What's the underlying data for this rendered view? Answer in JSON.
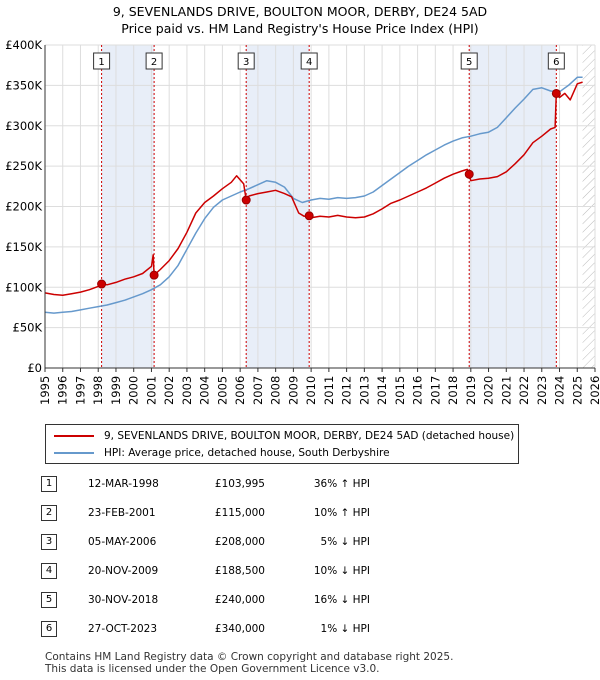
{
  "title_line1": "9, SEVENLANDS DRIVE, BOULTON MOOR, DERBY, DE24 5AD",
  "title_line2": "Price paid vs. HM Land Registry's House Price Index (HPI)",
  "legend": {
    "property_label": "9, SEVENLANDS DRIVE, BOULTON MOOR, DERBY, DE24 5AD (detached house)",
    "hpi_label": "HPI: Average price, detached house, South Derbyshire"
  },
  "colors": {
    "property": "#cc0000",
    "hpi": "#6699cc",
    "shade": "#e8eef8",
    "marker_line": "#cc0000"
  },
  "sales": [
    {
      "n": "1",
      "date": "12-MAR-1998",
      "price": "£103,995",
      "hpi": "36% ↑ HPI"
    },
    {
      "n": "2",
      "date": "23-FEB-2001",
      "price": "£115,000",
      "hpi": "10% ↑ HPI"
    },
    {
      "n": "3",
      "date": "05-MAY-2006",
      "price": "£208,000",
      "hpi": "5% ↓ HPI"
    },
    {
      "n": "4",
      "date": "20-NOV-2009",
      "price": "£188,500",
      "hpi": "10% ↓ HPI"
    },
    {
      "n": "5",
      "date": "30-NOV-2018",
      "price": "£240,000",
      "hpi": "16% ↓ HPI"
    },
    {
      "n": "6",
      "date": "27-OCT-2023",
      "price": "£340,000",
      "hpi": "1% ↓ HPI"
    }
  ],
  "footer_line1": "Contains HM Land Registry data © Crown copyright and database right 2025.",
  "footer_line2": "This data is licensed under the Open Government Licence v3.0.",
  "chart_data": {
    "type": "line",
    "title": "9, SEVENLANDS DRIVE, BOULTON MOOR, DERBY, DE24 5AD — Price paid vs. HM Land Registry's House Price Index (HPI)",
    "xlim": [
      1995,
      2026
    ],
    "ylim": [
      0,
      400000
    ],
    "x_ticks": [
      1995,
      1996,
      1997,
      1998,
      1999,
      2000,
      2001,
      2002,
      2003,
      2004,
      2005,
      2006,
      2007,
      2008,
      2009,
      2010,
      2011,
      2012,
      2013,
      2014,
      2015,
      2016,
      2017,
      2018,
      2019,
      2020,
      2021,
      2022,
      2023,
      2024,
      2025,
      2026
    ],
    "y_ticks": [
      0,
      50000,
      100000,
      150000,
      200000,
      250000,
      300000,
      350000,
      400000
    ],
    "y_tick_labels": [
      "£0",
      "£50K",
      "£100K",
      "£150K",
      "£200K",
      "£250K",
      "£300K",
      "£350K",
      "£400K"
    ],
    "grid": true,
    "shaded_periods": [
      [
        1998.19,
        2001.15
      ],
      [
        2006.34,
        2009.89
      ],
      [
        2018.91,
        2023.82
      ]
    ],
    "future_hatch_from": 2025.3,
    "sale_markers": [
      {
        "label": "1",
        "x": 1998.19,
        "y": 103995
      },
      {
        "label": "2",
        "x": 2001.15,
        "y": 115000
      },
      {
        "label": "3",
        "x": 2006.34,
        "y": 208000
      },
      {
        "label": "4",
        "x": 2009.89,
        "y": 188500
      },
      {
        "label": "5",
        "x": 2018.91,
        "y": 240000
      },
      {
        "label": "6",
        "x": 2023.82,
        "y": 340000
      }
    ],
    "series": [
      {
        "name": "9, SEVENLANDS DRIVE, BOULTON MOOR, DERBY, DE24 5AD (detached house)",
        "color": "#cc0000",
        "points": [
          [
            1995.0,
            93000
          ],
          [
            1995.5,
            91000
          ],
          [
            1996.0,
            90000
          ],
          [
            1996.5,
            92000
          ],
          [
            1997.0,
            94000
          ],
          [
            1997.5,
            97000
          ],
          [
            1998.0,
            101000
          ],
          [
            1998.19,
            103995
          ],
          [
            1998.5,
            103000
          ],
          [
            1999.0,
            106000
          ],
          [
            1999.5,
            110000
          ],
          [
            2000.0,
            113000
          ],
          [
            2000.5,
            117000
          ],
          [
            2001.0,
            126000
          ],
          [
            2001.1,
            140000
          ],
          [
            2001.15,
            115000
          ],
          [
            2001.5,
            122000
          ],
          [
            2002.0,
            133000
          ],
          [
            2002.5,
            148000
          ],
          [
            2003.0,
            168000
          ],
          [
            2003.5,
            192000
          ],
          [
            2004.0,
            205000
          ],
          [
            2004.5,
            213000
          ],
          [
            2005.0,
            222000
          ],
          [
            2005.5,
            230000
          ],
          [
            2005.8,
            238000
          ],
          [
            2006.2,
            228000
          ],
          [
            2006.34,
            208000
          ],
          [
            2006.5,
            213000
          ],
          [
            2007.0,
            216000
          ],
          [
            2007.5,
            218000
          ],
          [
            2008.0,
            220000
          ],
          [
            2008.5,
            216000
          ],
          [
            2008.9,
            212000
          ],
          [
            2009.3,
            192000
          ],
          [
            2009.6,
            188000
          ],
          [
            2009.89,
            188500
          ],
          [
            2010.0,
            186000
          ],
          [
            2010.5,
            188000
          ],
          [
            2011.0,
            187000
          ],
          [
            2011.5,
            189000
          ],
          [
            2012.0,
            187000
          ],
          [
            2012.5,
            186000
          ],
          [
            2013.0,
            187000
          ],
          [
            2013.5,
            191000
          ],
          [
            2014.0,
            197000
          ],
          [
            2014.5,
            204000
          ],
          [
            2015.0,
            208000
          ],
          [
            2015.5,
            213000
          ],
          [
            2016.0,
            218000
          ],
          [
            2016.5,
            223000
          ],
          [
            2017.0,
            229000
          ],
          [
            2017.5,
            235000
          ],
          [
            2018.0,
            240000
          ],
          [
            2018.5,
            244000
          ],
          [
            2018.8,
            246000
          ],
          [
            2018.91,
            240000
          ],
          [
            2019.0,
            232000
          ],
          [
            2019.5,
            234000
          ],
          [
            2020.0,
            235000
          ],
          [
            2020.5,
            237000
          ],
          [
            2021.0,
            243000
          ],
          [
            2021.5,
            253000
          ],
          [
            2022.0,
            264000
          ],
          [
            2022.5,
            279000
          ],
          [
            2023.0,
            287000
          ],
          [
            2023.5,
            296000
          ],
          [
            2023.75,
            298000
          ],
          [
            2023.82,
            340000
          ],
          [
            2024.0,
            335000
          ],
          [
            2024.3,
            340000
          ],
          [
            2024.6,
            332000
          ],
          [
            2025.0,
            352000
          ],
          [
            2025.3,
            354000
          ]
        ]
      },
      {
        "name": "HPI: Average price, detached house, South Derbyshire",
        "color": "#6699cc",
        "points": [
          [
            1995.0,
            69000
          ],
          [
            1995.5,
            68000
          ],
          [
            1996.0,
            69000
          ],
          [
            1996.5,
            70000
          ],
          [
            1997.0,
            72000
          ],
          [
            1997.5,
            74000
          ],
          [
            1998.0,
            76000
          ],
          [
            1998.5,
            78000
          ],
          [
            1999.0,
            81000
          ],
          [
            1999.5,
            84000
          ],
          [
            2000.0,
            88000
          ],
          [
            2000.5,
            92000
          ],
          [
            2001.0,
            97000
          ],
          [
            2001.5,
            103000
          ],
          [
            2002.0,
            113000
          ],
          [
            2002.5,
            127000
          ],
          [
            2003.0,
            147000
          ],
          [
            2003.5,
            167000
          ],
          [
            2004.0,
            185000
          ],
          [
            2004.5,
            199000
          ],
          [
            2005.0,
            208000
          ],
          [
            2005.5,
            213000
          ],
          [
            2006.0,
            218000
          ],
          [
            2006.5,
            222000
          ],
          [
            2007.0,
            227000
          ],
          [
            2007.5,
            232000
          ],
          [
            2008.0,
            230000
          ],
          [
            2008.5,
            224000
          ],
          [
            2009.0,
            210000
          ],
          [
            2009.5,
            205000
          ],
          [
            2010.0,
            208000
          ],
          [
            2010.5,
            210000
          ],
          [
            2011.0,
            209000
          ],
          [
            2011.5,
            211000
          ],
          [
            2012.0,
            210000
          ],
          [
            2012.5,
            211000
          ],
          [
            2013.0,
            213000
          ],
          [
            2013.5,
            218000
          ],
          [
            2014.0,
            226000
          ],
          [
            2014.5,
            234000
          ],
          [
            2015.0,
            242000
          ],
          [
            2015.5,
            250000
          ],
          [
            2016.0,
            257000
          ],
          [
            2016.5,
            264000
          ],
          [
            2017.0,
            270000
          ],
          [
            2017.5,
            276000
          ],
          [
            2018.0,
            281000
          ],
          [
            2018.5,
            285000
          ],
          [
            2019.0,
            287000
          ],
          [
            2019.5,
            290000
          ],
          [
            2020.0,
            292000
          ],
          [
            2020.5,
            298000
          ],
          [
            2021.0,
            310000
          ],
          [
            2021.5,
            322000
          ],
          [
            2022.0,
            333000
          ],
          [
            2022.5,
            345000
          ],
          [
            2023.0,
            347000
          ],
          [
            2023.5,
            343000
          ],
          [
            2024.0,
            342000
          ],
          [
            2024.5,
            350000
          ],
          [
            2025.0,
            360000
          ],
          [
            2025.3,
            360000
          ]
        ]
      }
    ]
  }
}
